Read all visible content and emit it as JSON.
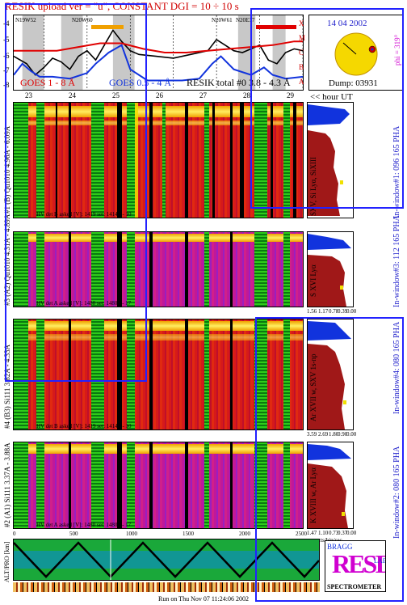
{
  "header": {
    "title": "RESIK upload ver = \"u\", CONSTANT  DGI =  10 ÷ 10 s",
    "goes_short": "GOES 1 - 8 Å",
    "goes_long": "GOES 0.5 - 4 Å",
    "resik_total": "RESIK total #0 3.8 - 4.3 Å",
    "hour_ut": "<< hour UT"
  },
  "lightcurve": {
    "y_ticks": [
      "-4",
      "-5",
      "-6",
      "-7",
      "-8"
    ],
    "right_letters": [
      "X",
      "M",
      "C",
      "B",
      "A"
    ],
    "x_ticks": [
      "23",
      "24",
      "25",
      "26",
      "27",
      "28",
      "29"
    ],
    "flare_labels": [
      "N19W52",
      "N20W60",
      "N20W61",
      "N20E37"
    ]
  },
  "sun": {
    "date": "14 04 2002",
    "phi": "phi = 319°",
    "dump": "Dump: 03931",
    "flare_marker": "#f0c000"
  },
  "channels": [
    {
      "label": "#1 (B) Qu1010 4.96A - 6.09A",
      "hv": "HV det B asked [V]: 1419 set: 1414 +- 10",
      "spectrum_label": "SXV, Si Lyα, SiXIII",
      "window_label": "In-window#1: 096 165 PHA"
    },
    {
      "label": "#3 (A2) Qu1010 4.31A - 4.89A",
      "hv": "HV det A asked [V]: 1480 set: 1480 +- 17",
      "spectrum_label": "S XVI Lyα",
      "window_label": "In-window#3: 112 165 PHA",
      "ticks": [
        "1.56",
        "1.17",
        "0.78",
        "0.39",
        "0.00"
      ]
    },
    {
      "label": "#4 (B3) Si111 3.82A - 4.33A",
      "hv": "HV det B asked [V]: 1419 set: 1414 +- 10",
      "spectrum_label": "Ar XVII w, SXV 1s-np",
      "window_label": "In-window#4: 080 165 PHA",
      "ticks": [
        "3.59",
        "2.69",
        "1.80",
        "0.90",
        "0.00"
      ]
    },
    {
      "label": "#2 (A1) Si111 3.37A - 3.88A",
      "hv": "HV det A asked [V]: 1480 set: 1480 +- 17",
      "spectrum_label": "K XVIII w, Ar Lyα",
      "window_label": "In-window#2: 080 165 PHA",
      "ticks": [
        "1.47",
        "1.10",
        "0.73",
        "0.37",
        "0.00"
      ],
      "unit": "cts/bin/sec"
    }
  ],
  "orbit": {
    "label": "ALT/PRO [km]",
    "x_ticks": [
      "0",
      "500",
      "1000",
      "1500",
      "2000",
      "2500"
    ]
  },
  "logo": {
    "letters": "RESIK",
    "subtitle": "SPECTROMETER",
    "corner": "BRAGG",
    "small": "LAB"
  },
  "footer": {
    "run_on": "Run on Thu Nov 07 11:24:06 2002"
  },
  "colors": {
    "frame_blue": "#2222ff",
    "goes_black": "#000000",
    "goes_red": "#e00000",
    "goes_blue": "#1133dd",
    "spectrum_red": "#a01818"
  },
  "chart_data": {
    "type": "line",
    "title": "RESIK upload ver = \"u\", CONSTANT  DGI =  10 ÷ 10 s",
    "xlabel": "hour UT",
    "ylabel": "",
    "xlim": [
      22.3,
      29.0
    ],
    "ylim": [
      -8,
      -4
    ],
    "x_ticks": [
      23,
      24,
      25,
      26,
      27,
      28,
      29
    ],
    "y_ticks": [
      -4,
      -5,
      -6,
      -7,
      -8
    ],
    "series": [
      {
        "name": "GOES 1 - 8 Å",
        "color": "#000000",
        "x": [
          22.3,
          22.6,
          22.8,
          23.0,
          23.2,
          23.4,
          23.6,
          23.8,
          24.0,
          24.2,
          24.4,
          24.6,
          24.8,
          25.0,
          25.2,
          25.6,
          26.0,
          26.4,
          26.8,
          27.0,
          27.2,
          27.4,
          27.6,
          27.8,
          28.0,
          28.2,
          28.4,
          28.6,
          28.8,
          29.0
        ],
        "y": [
          -6.2,
          -6.6,
          -7.2,
          -6.8,
          -6.3,
          -6.5,
          -6.9,
          -6.2,
          -5.9,
          -6.4,
          -5.6,
          -4.8,
          -5.4,
          -5.9,
          -6.1,
          -6.2,
          -6.3,
          -6.1,
          -5.9,
          -5.3,
          -5.6,
          -5.9,
          -6.0,
          -5.8,
          -5.6,
          -6.4,
          -6.6,
          -6.0,
          -5.8,
          -5.9
        ]
      },
      {
        "name": "GOES 0.5 - 4 Å",
        "color": "#1133dd",
        "x": [
          22.3,
          22.5,
          22.7,
          22.9,
          23.2,
          23.6,
          24.0,
          24.2,
          24.5,
          24.8,
          25.0,
          25.4,
          25.8,
          26.2,
          26.6,
          26.9,
          27.1,
          27.4,
          27.8,
          28.1,
          28.3,
          28.6,
          29.0
        ],
        "y": [
          -7.2,
          -6.6,
          -7.0,
          -7.3,
          -7.3,
          -7.4,
          -7.1,
          -6.6,
          -6.0,
          -5.6,
          -6.9,
          -7.5,
          -7.5,
          -7.5,
          -7.4,
          -6.6,
          -6.2,
          -6.9,
          -7.2,
          -6.8,
          -7.2,
          -7.4,
          -7.3
        ]
      },
      {
        "name": "RESIK total #0 3.8 - 4.3 Å",
        "color": "#e00000",
        "x": [
          22.3,
          22.8,
          23.3,
          23.8,
          24.3,
          24.8,
          25.3,
          25.8,
          26.3,
          26.8,
          27.3,
          27.8,
          28.3,
          28.8,
          29.0
        ],
        "y": [
          -5.9,
          -5.9,
          -5.9,
          -5.7,
          -5.5,
          -5.5,
          -5.8,
          -6.0,
          -6.0,
          -5.9,
          -5.8,
          -5.7,
          -5.6,
          -5.4,
          -5.4
        ]
      }
    ]
  }
}
